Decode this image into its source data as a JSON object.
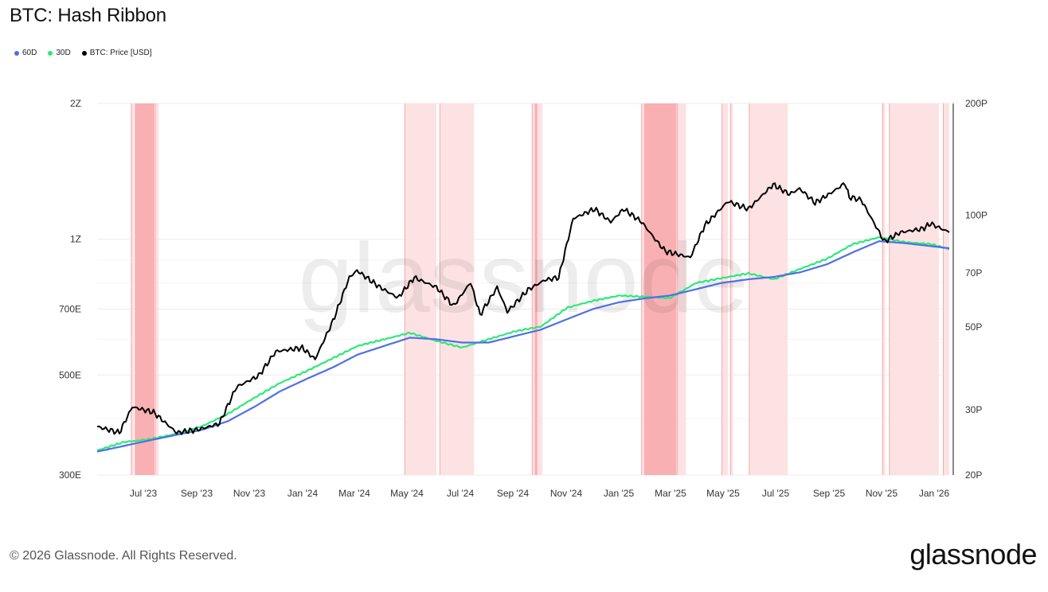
{
  "title": "BTC: Hash Ribbon",
  "footer": "© 2026 Glassnode. All Rights Reserved.",
  "brand": "glassnode",
  "watermark": "glassnode",
  "colors": {
    "sixty": "#4f6fe6",
    "thirty": "#2ee87a",
    "price": "#000000",
    "band_light": "#fde2e3",
    "band_dark": "#f9b0b3",
    "grid": "#ececec"
  },
  "chart_data": {
    "type": "line",
    "title": "BTC: Hash Ribbon",
    "x_ticks": [
      "Jul '23",
      "Sep '23",
      "Nov '23",
      "Jan '24",
      "Mar '24",
      "May '24",
      "Jul '24",
      "Sep '24",
      "Nov '24",
      "Jan '25",
      "Mar '25",
      "May '25",
      "Jul '25",
      "Sep '25",
      "Nov '25",
      "Jan '26"
    ],
    "left_axis": {
      "scale": "log",
      "ticks": [
        "300E",
        "500E",
        "700E",
        "1Z",
        "2Z"
      ],
      "tick_values": [
        300,
        500,
        700,
        1000,
        2000
      ],
      "range": [
        300,
        2000
      ]
    },
    "right_axis": {
      "scale": "log",
      "ticks": [
        "20P",
        "30P",
        "50P",
        "70P",
        "100P",
        "200P"
      ],
      "tick_values": [
        20,
        30,
        50,
        70,
        100,
        200
      ],
      "range": [
        20,
        200
      ]
    },
    "x_range": [
      "2023-05-15",
      "2026-02-05"
    ],
    "legend": [
      "60D",
      "30D",
      "BTC: Price [USD]"
    ],
    "series": [
      {
        "name": "60D",
        "axis": "left",
        "x": [
          "2023-05-15",
          "2023-06-15",
          "2023-07-15",
          "2023-08-15",
          "2023-09-15",
          "2023-10-15",
          "2023-11-15",
          "2023-12-15",
          "2024-01-15",
          "2024-02-15",
          "2024-03-15",
          "2024-04-15",
          "2024-05-15",
          "2024-06-15",
          "2024-07-15",
          "2024-08-15",
          "2024-09-15",
          "2024-10-15",
          "2024-11-15",
          "2024-12-15",
          "2025-01-15",
          "2025-02-15",
          "2025-03-15",
          "2025-04-15",
          "2025-05-15",
          "2025-06-15",
          "2025-07-15",
          "2025-08-15",
          "2025-09-15",
          "2025-10-15",
          "2025-11-15",
          "2025-12-15",
          "2026-01-15",
          "2026-02-05"
        ],
        "values": [
          338,
          348,
          358,
          368,
          378,
          395,
          425,
          460,
          490,
          520,
          555,
          580,
          605,
          600,
          590,
          590,
          610,
          630,
          665,
          700,
          725,
          740,
          750,
          775,
          800,
          815,
          825,
          845,
          880,
          935,
          990,
          980,
          965,
          955
        ]
      },
      {
        "name": "30D",
        "axis": "left",
        "x": [
          "2023-05-15",
          "2023-06-15",
          "2023-07-15",
          "2023-08-15",
          "2023-09-15",
          "2023-10-15",
          "2023-11-15",
          "2023-12-15",
          "2024-01-15",
          "2024-02-15",
          "2024-03-15",
          "2024-04-15",
          "2024-05-15",
          "2024-06-15",
          "2024-07-15",
          "2024-08-15",
          "2024-09-15",
          "2024-10-15",
          "2024-11-15",
          "2024-12-15",
          "2025-01-15",
          "2025-02-15",
          "2025-03-15",
          "2025-04-15",
          "2025-05-15",
          "2025-06-15",
          "2025-07-15",
          "2025-08-15",
          "2025-09-15",
          "2025-10-15",
          "2025-11-15",
          "2025-12-15",
          "2026-01-15",
          "2026-02-05"
        ],
        "values": [
          340,
          355,
          360,
          370,
          385,
          410,
          445,
          480,
          510,
          545,
          580,
          600,
          620,
          595,
          575,
          600,
          625,
          640,
          705,
          730,
          750,
          745,
          740,
          800,
          820,
          840,
          815,
          860,
          905,
          975,
          1010,
          985,
          975,
          950
        ]
      },
      {
        "name": "BTC: Price [USD]",
        "axis": "right",
        "x": [
          "2023-05-15",
          "2023-06-10",
          "2023-06-25",
          "2023-07-20",
          "2023-08-16",
          "2023-09-10",
          "2023-10-05",
          "2023-10-25",
          "2023-11-20",
          "2023-12-10",
          "2024-01-10",
          "2024-01-25",
          "2024-02-15",
          "2024-03-05",
          "2024-03-14",
          "2024-04-10",
          "2024-05-01",
          "2024-05-20",
          "2024-06-15",
          "2024-07-05",
          "2024-07-25",
          "2024-08-05",
          "2024-08-25",
          "2024-09-06",
          "2024-09-30",
          "2024-10-20",
          "2024-11-05",
          "2024-11-22",
          "2024-12-17",
          "2025-01-05",
          "2025-01-20",
          "2025-02-10",
          "2025-02-28",
          "2025-03-10",
          "2025-04-08",
          "2025-04-25",
          "2025-05-22",
          "2025-06-15",
          "2025-07-14",
          "2025-08-02",
          "2025-08-14",
          "2025-09-01",
          "2025-09-20",
          "2025-10-06",
          "2025-10-11",
          "2025-10-25",
          "2025-11-21",
          "2025-12-10",
          "2026-01-05",
          "2026-01-14",
          "2026-02-05"
        ],
        "values": [
          27,
          26,
          30.5,
          29.5,
          26,
          26.5,
          27.5,
          34.5,
          37,
          43,
          44,
          41,
          52,
          68,
          71,
          64,
          60,
          68,
          64,
          57,
          66,
          54,
          64,
          55,
          63,
          67,
          68,
          98,
          104,
          96,
          104,
          96,
          85,
          80,
          77,
          94,
          109,
          104,
          121,
          114,
          118,
          108,
          115,
          122,
          112,
          110,
          85,
          90,
          92,
          95,
          90
        ]
      }
    ],
    "bands_light": [
      [
        "2023-06-24",
        "2023-06-27"
      ],
      [
        "2023-07-22",
        "2023-07-26"
      ],
      [
        "2024-05-09",
        "2024-06-15"
      ],
      [
        "2024-06-19",
        "2024-07-29"
      ],
      [
        "2024-10-05",
        "2024-10-17"
      ],
      [
        "2025-02-10",
        "2025-03-05"
      ],
      [
        "2025-03-24",
        "2025-04-03"
      ],
      [
        "2025-05-15",
        "2025-05-22"
      ],
      [
        "2025-05-25",
        "2025-05-28"
      ],
      [
        "2025-06-16",
        "2025-07-31"
      ],
      [
        "2025-11-19",
        "2025-11-22"
      ],
      [
        "2025-11-27",
        "2026-01-24"
      ],
      [
        "2026-01-29",
        "2026-02-05"
      ]
    ],
    "bands_dark": [
      [
        "2023-06-28",
        "2023-07-21"
      ],
      [
        "2024-10-08",
        "2024-10-11"
      ],
      [
        "2025-02-13",
        "2025-03-23"
      ]
    ]
  }
}
